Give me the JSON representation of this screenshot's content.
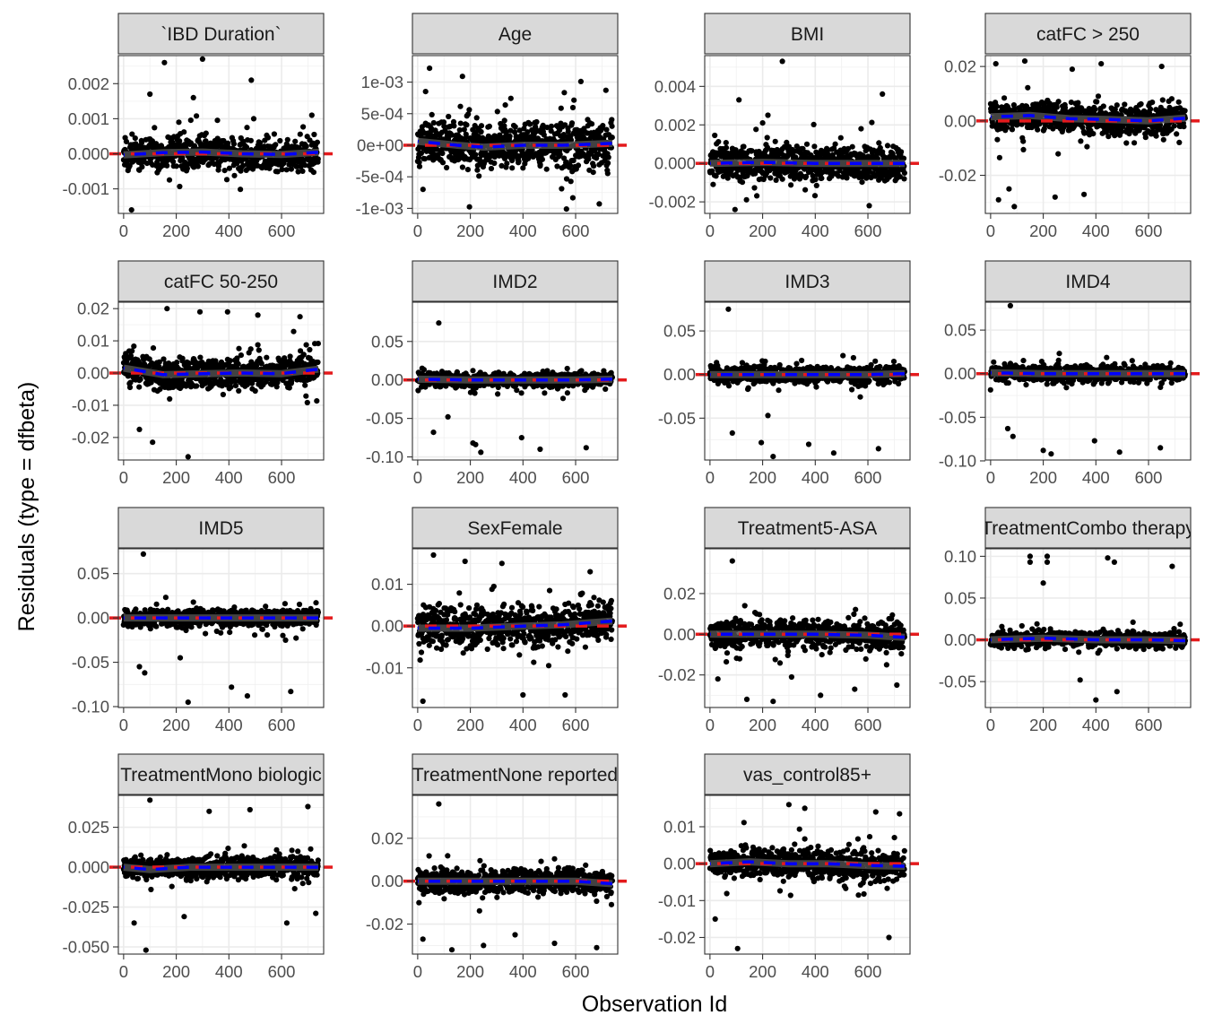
{
  "figure": {
    "xlabel": "Observation Id",
    "ylabel": "Residuals (type = dfbeta)"
  },
  "chart_data": [
    {
      "type": "scatter",
      "title": "`IBD Duration`",
      "xlim": [
        -20,
        760
      ],
      "ylim": [
        -0.0017,
        0.0028
      ],
      "x_ticks": [
        0,
        200,
        400,
        600
      ],
      "x_tick_labels": [
        "0",
        "200",
        "400",
        "600"
      ],
      "y_ticks": [
        -0.001,
        0,
        0.001,
        0.002
      ],
      "y_tick_labels": [
        "-0.001",
        "0.000",
        "0.001",
        "0.002"
      ],
      "spread": 0.00035,
      "outliers": [
        [
          30,
          -0.0016
        ],
        [
          155,
          0.0026
        ],
        [
          300,
          0.0027
        ],
        [
          485,
          0.0021
        ],
        [
          100,
          0.0017
        ],
        [
          265,
          0.0016
        ],
        [
          210,
          0.0009
        ],
        [
          715,
          0.0011
        ]
      ],
      "smooth": [
        [
          0,
          -3e-05
        ],
        [
          150,
          3e-05
        ],
        [
          300,
          5e-05
        ],
        [
          450,
          0.0
        ],
        [
          600,
          -2e-05
        ],
        [
          740,
          4e-05
        ]
      ]
    },
    {
      "type": "scatter",
      "title": "Age",
      "xlim": [
        -20,
        760
      ],
      "ylim": [
        -0.00108,
        0.00142
      ],
      "x_ticks": [
        0,
        200,
        400,
        600
      ],
      "x_tick_labels": [
        "0",
        "200",
        "400",
        "600"
      ],
      "y_ticks": [
        -0.001,
        -0.0005,
        0,
        0.0005,
        0.001
      ],
      "y_tick_labels": [
        "-1e-03",
        "-5e-04",
        "0e+00",
        "5e-04",
        "1e-03"
      ],
      "spread": 0.00028,
      "outliers": [
        [
          45,
          0.00122
        ],
        [
          170,
          0.00109
        ],
        [
          620,
          0.00101
        ],
        [
          715,
          0.00087
        ],
        [
          565,
          -0.00101
        ],
        [
          690,
          -0.00093
        ],
        [
          30,
          0.00085
        ]
      ],
      "smooth": [
        [
          0,
          6e-05
        ],
        [
          150,
          0.0
        ],
        [
          250,
          -3e-05
        ],
        [
          400,
          0.0
        ],
        [
          550,
          0.0
        ],
        [
          740,
          3e-05
        ]
      ]
    },
    {
      "type": "scatter",
      "title": "BMI",
      "xlim": [
        -20,
        760
      ],
      "ylim": [
        -0.0026,
        0.0056
      ],
      "x_ticks": [
        0,
        200,
        400,
        600
      ],
      "x_tick_labels": [
        "0",
        "200",
        "400",
        "600"
      ],
      "y_ticks": [
        -0.002,
        0,
        0.002,
        0.004
      ],
      "y_tick_labels": [
        "-0.002",
        "0.000",
        "0.002",
        "0.004"
      ],
      "spread": 0.0007,
      "outliers": [
        [
          275,
          0.0053
        ],
        [
          110,
          0.0033
        ],
        [
          655,
          0.0036
        ],
        [
          220,
          0.0025
        ],
        [
          95,
          -0.0024
        ],
        [
          605,
          -0.0022
        ],
        [
          200,
          0.0021
        ]
      ],
      "smooth": [
        [
          0,
          0.0
        ],
        [
          200,
          5e-05
        ],
        [
          400,
          0.0
        ],
        [
          600,
          0.0
        ],
        [
          740,
          0.0
        ]
      ]
    },
    {
      "type": "scatter",
      "title": "catFC > 250",
      "xlim": [
        -20,
        760
      ],
      "ylim": [
        -0.034,
        0.024
      ],
      "x_ticks": [
        0,
        200,
        400,
        600
      ],
      "x_tick_labels": [
        "0",
        "200",
        "400",
        "600"
      ],
      "y_ticks": [
        -0.02,
        0,
        0.02
      ],
      "y_tick_labels": [
        "-0.02",
        "0.00",
        "0.02"
      ],
      "spread": 0.004,
      "outliers": [
        [
          90,
          -0.0315
        ],
        [
          30,
          -0.029
        ],
        [
          245,
          -0.028
        ],
        [
          355,
          -0.027
        ],
        [
          70,
          -0.025
        ],
        [
          130,
          0.022
        ],
        [
          420,
          0.021
        ],
        [
          650,
          0.02
        ],
        [
          20,
          0.021
        ],
        [
          310,
          0.019
        ]
      ],
      "smooth": [
        [
          0,
          0.0015
        ],
        [
          150,
          0.002
        ],
        [
          300,
          0.0008
        ],
        [
          450,
          0.0005
        ],
        [
          600,
          0.0
        ],
        [
          740,
          0.001
        ]
      ]
    },
    {
      "type": "scatter",
      "title": "catFC 50-250",
      "xlim": [
        -20,
        760
      ],
      "ylim": [
        -0.027,
        0.022
      ],
      "x_ticks": [
        0,
        200,
        400,
        600
      ],
      "x_tick_labels": [
        "0",
        "200",
        "400",
        "600"
      ],
      "y_ticks": [
        -0.02,
        -0.01,
        0,
        0.01,
        0.02
      ],
      "y_tick_labels": [
        "-0.02",
        "-0.01",
        "0.00",
        "0.01",
        "0.02"
      ],
      "spread": 0.0035,
      "outliers": [
        [
          245,
          -0.026
        ],
        [
          110,
          -0.0215
        ],
        [
          165,
          0.02
        ],
        [
          290,
          0.019
        ],
        [
          395,
          0.019
        ],
        [
          670,
          0.0175
        ],
        [
          510,
          0.018
        ],
        [
          60,
          -0.0175
        ]
      ],
      "smooth": [
        [
          0,
          0.0015
        ],
        [
          150,
          -0.0005
        ],
        [
          300,
          -0.0002
        ],
        [
          450,
          0.0
        ],
        [
          600,
          -0.0002
        ],
        [
          740,
          0.0012
        ]
      ]
    },
    {
      "type": "scatter",
      "title": "IMD2",
      "xlim": [
        -20,
        760
      ],
      "ylim": [
        -0.104,
        0.101
      ],
      "x_ticks": [
        0,
        200,
        400,
        600
      ],
      "x_tick_labels": [
        "0",
        "200",
        "400",
        "600"
      ],
      "y_ticks": [
        -0.1,
        -0.05,
        0,
        0.05
      ],
      "y_tick_labels": [
        "-0.10",
        "-0.05",
        "0.00",
        "0.05"
      ],
      "spread": 0.007,
      "outliers": [
        [
          80,
          0.074
        ],
        [
          240,
          -0.094
        ],
        [
          465,
          -0.09
        ],
        [
          640,
          -0.088
        ],
        [
          210,
          -0.082
        ],
        [
          395,
          -0.075
        ],
        [
          220,
          -0.084
        ],
        [
          115,
          -0.048
        ],
        [
          60,
          -0.068
        ]
      ],
      "smooth": [
        [
          0,
          0.001
        ],
        [
          200,
          0.0
        ],
        [
          400,
          0.0
        ],
        [
          600,
          0.0
        ],
        [
          740,
          0.001
        ]
      ]
    },
    {
      "type": "scatter",
      "title": "IMD3",
      "xlim": [
        -20,
        760
      ],
      "ylim": [
        -0.098,
        0.083
      ],
      "x_ticks": [
        0,
        200,
        400,
        600
      ],
      "x_tick_labels": [
        "0",
        "200",
        "400",
        "600"
      ],
      "y_ticks": [
        -0.1,
        -0.05,
        0,
        0.05
      ],
      "y_tick_labels": [
        "-0.10",
        "-0.05",
        "0.00",
        "0.05"
      ],
      "spread": 0.007,
      "outliers": [
        [
          70,
          0.075
        ],
        [
          240,
          -0.094
        ],
        [
          470,
          -0.09
        ],
        [
          375,
          -0.08
        ],
        [
          195,
          -0.078
        ],
        [
          640,
          -0.085
        ],
        [
          85,
          -0.067
        ],
        [
          220,
          -0.047
        ]
      ],
      "smooth": [
        [
          0,
          0.0
        ],
        [
          200,
          0.0
        ],
        [
          400,
          0.0
        ],
        [
          600,
          0.0
        ],
        [
          740,
          0.001
        ]
      ]
    },
    {
      "type": "scatter",
      "title": "IMD4",
      "xlim": [
        -20,
        760
      ],
      "ylim": [
        -0.099,
        0.082
      ],
      "x_ticks": [
        0,
        200,
        400,
        600
      ],
      "x_tick_labels": [
        "0",
        "200",
        "400",
        "600"
      ],
      "y_ticks": [
        -0.1,
        -0.05,
        0,
        0.05
      ],
      "y_tick_labels": [
        "-0.10",
        "-0.05",
        "0.00",
        "0.05"
      ],
      "spread": 0.007,
      "outliers": [
        [
          75,
          0.078
        ],
        [
          200,
          -0.088
        ],
        [
          490,
          -0.09
        ],
        [
          395,
          -0.077
        ],
        [
          645,
          -0.085
        ],
        [
          85,
          -0.072
        ],
        [
          65,
          -0.063
        ],
        [
          230,
          -0.092
        ]
      ],
      "smooth": [
        [
          0,
          0.001
        ],
        [
          200,
          0.0
        ],
        [
          400,
          0.0
        ],
        [
          600,
          0.0
        ],
        [
          740,
          0.0
        ]
      ]
    },
    {
      "type": "scatter",
      "title": "IMD5",
      "xlim": [
        -20,
        760
      ],
      "ylim": [
        -0.101,
        0.078
      ],
      "x_ticks": [
        0,
        200,
        400,
        600
      ],
      "x_tick_labels": [
        "0",
        "200",
        "400",
        "600"
      ],
      "y_ticks": [
        -0.1,
        -0.05,
        0,
        0.05
      ],
      "y_tick_labels": [
        "-0.10",
        "-0.05",
        "0.00",
        "0.05"
      ],
      "spread": 0.007,
      "outliers": [
        [
          75,
          0.072
        ],
        [
          245,
          -0.095
        ],
        [
          410,
          -0.078
        ],
        [
          470,
          -0.088
        ],
        [
          635,
          -0.083
        ],
        [
          80,
          -0.062
        ],
        [
          215,
          -0.045
        ],
        [
          60,
          -0.055
        ]
      ],
      "smooth": [
        [
          0,
          0.0
        ],
        [
          200,
          0.0
        ],
        [
          400,
          0.0
        ],
        [
          600,
          0.0
        ],
        [
          740,
          0.0
        ]
      ]
    },
    {
      "type": "scatter",
      "title": "SexFemale",
      "xlim": [
        -20,
        760
      ],
      "ylim": [
        -0.0195,
        0.0185
      ],
      "x_ticks": [
        0,
        200,
        400,
        600
      ],
      "x_tick_labels": [
        "0",
        "200",
        "400",
        "600"
      ],
      "y_ticks": [
        -0.02,
        -0.01,
        0,
        0.01
      ],
      "y_tick_labels": [
        "-0.02",
        "-0.01",
        "0.00",
        "0.01"
      ],
      "spread": 0.0035,
      "outliers": [
        [
          60,
          0.017
        ],
        [
          20,
          -0.018
        ],
        [
          180,
          0.0155
        ],
        [
          320,
          0.015
        ],
        [
          655,
          0.013
        ],
        [
          400,
          -0.0165
        ],
        [
          560,
          -0.0165
        ]
      ],
      "smooth": [
        [
          0,
          -0.0005
        ],
        [
          200,
          -0.0005
        ],
        [
          400,
          0.0
        ],
        [
          550,
          0.0003
        ],
        [
          740,
          0.0012
        ]
      ]
    },
    {
      "type": "scatter",
      "title": "Treatment5-ASA",
      "xlim": [
        -20,
        760
      ],
      "ylim": [
        -0.036,
        0.042
      ],
      "x_ticks": [
        0,
        200,
        400,
        600
      ],
      "x_tick_labels": [
        "0",
        "200",
        "400",
        "600"
      ],
      "y_ticks": [
        -0.02,
        0,
        0.02
      ],
      "y_tick_labels": [
        "-0.02",
        "0.00",
        "0.02"
      ],
      "spread": 0.005,
      "outliers": [
        [
          85,
          0.036
        ],
        [
          30,
          -0.022
        ],
        [
          310,
          -0.021
        ],
        [
          140,
          -0.032
        ],
        [
          240,
          -0.033
        ],
        [
          710,
          -0.025
        ],
        [
          420,
          -0.03
        ],
        [
          550,
          -0.027
        ]
      ],
      "smooth": [
        [
          0,
          0.0
        ],
        [
          200,
          0.0
        ],
        [
          400,
          0.0
        ],
        [
          600,
          -0.0005
        ],
        [
          740,
          -0.0015
        ]
      ]
    },
    {
      "type": "scatter",
      "title": "TreatmentCombo therapy",
      "xlim": [
        -20,
        760
      ],
      "ylim": [
        -0.081,
        0.109
      ],
      "x_ticks": [
        0,
        200,
        400,
        600
      ],
      "x_tick_labels": [
        "0",
        "200",
        "400",
        "600"
      ],
      "y_ticks": [
        -0.05,
        0,
        0.05,
        0.1
      ],
      "y_tick_labels": [
        "-0.05",
        "0.00",
        "0.05",
        "0.10"
      ],
      "spread": 0.007,
      "outliers": [
        [
          150,
          0.1
        ],
        [
          215,
          0.1
        ],
        [
          150,
          0.093
        ],
        [
          215,
          0.093
        ],
        [
          445,
          0.098
        ],
        [
          470,
          0.093
        ],
        [
          690,
          0.088
        ],
        [
          200,
          0.068
        ],
        [
          400,
          -0.072
        ],
        [
          480,
          -0.062
        ],
        [
          340,
          -0.048
        ]
      ],
      "smooth": [
        [
          0,
          0.0
        ],
        [
          200,
          0.002
        ],
        [
          400,
          0.0
        ],
        [
          600,
          0.0
        ],
        [
          740,
          -0.001
        ]
      ]
    },
    {
      "type": "scatter",
      "title": "TreatmentMono biologic",
      "xlim": [
        -20,
        760
      ],
      "ylim": [
        -0.0545,
        0.045
      ],
      "x_ticks": [
        0,
        200,
        400,
        600
      ],
      "x_tick_labels": [
        "0",
        "200",
        "400",
        "600"
      ],
      "y_ticks": [
        -0.05,
        -0.025,
        0,
        0.025
      ],
      "y_tick_labels": [
        "-0.050",
        "-0.025",
        "0.000",
        "0.025"
      ],
      "spread": 0.005,
      "outliers": [
        [
          85,
          -0.052
        ],
        [
          100,
          0.042
        ],
        [
          40,
          -0.035
        ],
        [
          700,
          0.038
        ],
        [
          325,
          0.035
        ],
        [
          480,
          0.036
        ],
        [
          230,
          -0.031
        ],
        [
          620,
          -0.035
        ],
        [
          730,
          -0.029
        ]
      ],
      "smooth": [
        [
          0,
          0.0
        ],
        [
          100,
          -0.0015
        ],
        [
          250,
          0.0
        ],
        [
          450,
          0.0
        ],
        [
          600,
          0.0
        ],
        [
          740,
          0.0
        ]
      ]
    },
    {
      "type": "scatter",
      "title": "TreatmentNone reported",
      "xlim": [
        -20,
        760
      ],
      "ylim": [
        -0.034,
        0.04
      ],
      "x_ticks": [
        0,
        200,
        400,
        600
      ],
      "x_tick_labels": [
        "0",
        "200",
        "400",
        "600"
      ],
      "y_ticks": [
        -0.02,
        0,
        0.02
      ],
      "y_tick_labels": [
        "-0.02",
        "0.00",
        "0.02"
      ],
      "spread": 0.004,
      "outliers": [
        [
          80,
          0.036
        ],
        [
          130,
          -0.032
        ],
        [
          250,
          -0.03
        ],
        [
          680,
          -0.031
        ],
        [
          520,
          -0.029
        ],
        [
          20,
          -0.027
        ],
        [
          370,
          -0.025
        ]
      ],
      "smooth": [
        [
          0,
          0.0
        ],
        [
          200,
          0.0
        ],
        [
          400,
          0.0
        ],
        [
          600,
          0.0
        ],
        [
          740,
          -0.0012
        ]
      ]
    },
    {
      "type": "scatter",
      "title": "vas_control85+",
      "xlim": [
        -20,
        760
      ],
      "ylim": [
        -0.0245,
        0.0185
      ],
      "x_ticks": [
        0,
        200,
        400,
        600
      ],
      "x_tick_labels": [
        "0",
        "200",
        "400",
        "600"
      ],
      "y_ticks": [
        -0.02,
        -0.01,
        0,
        0.01
      ],
      "y_tick_labels": [
        "-0.02",
        "-0.01",
        "0.00",
        "0.01"
      ],
      "spread": 0.003,
      "outliers": [
        [
          105,
          -0.023
        ],
        [
          680,
          -0.02
        ],
        [
          20,
          -0.015
        ],
        [
          300,
          0.016
        ],
        [
          360,
          0.015
        ],
        [
          630,
          0.014
        ],
        [
          720,
          0.0135
        ]
      ],
      "smooth": [
        [
          0,
          0.0
        ],
        [
          150,
          0.0005
        ],
        [
          300,
          0.0
        ],
        [
          450,
          0.0
        ],
        [
          600,
          -0.0005
        ],
        [
          740,
          -0.0007
        ]
      ]
    }
  ]
}
